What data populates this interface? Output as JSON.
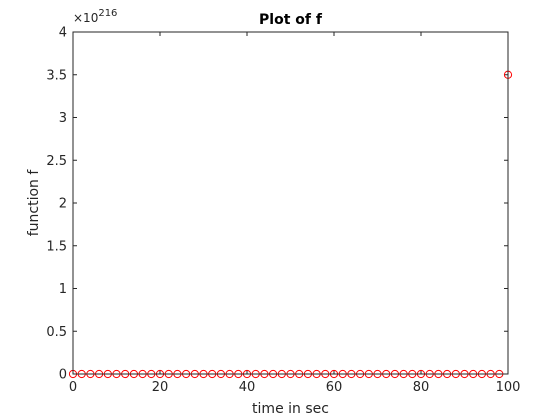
{
  "chart_data": {
    "type": "scatter",
    "title": "Plot of f",
    "xlabel": "time in sec",
    "ylabel": "function f",
    "xlim": [
      0,
      100
    ],
    "ylim": [
      0,
      4
    ],
    "xticks": [
      "0",
      "20",
      "40",
      "60",
      "80",
      "100"
    ],
    "yticks": [
      "0",
      "0.5",
      "1",
      "1.5",
      "2",
      "2.5",
      "3",
      "3.5",
      "4"
    ],
    "y_multiplier_base": "×10",
    "y_multiplier_exponent": "216",
    "marker": "circle",
    "marker_color": "#ff0000",
    "axis_color": "#262626",
    "grid": false,
    "x": [
      0,
      2,
      4,
      6,
      8,
      10,
      12,
      14,
      16,
      18,
      20,
      22,
      24,
      26,
      28,
      30,
      32,
      34,
      36,
      38,
      40,
      42,
      44,
      46,
      48,
      50,
      52,
      54,
      56,
      58,
      60,
      62,
      64,
      66,
      68,
      70,
      72,
      74,
      76,
      78,
      80,
      82,
      84,
      86,
      88,
      90,
      92,
      94,
      96,
      98,
      100
    ],
    "y": [
      0,
      0,
      0,
      0,
      0,
      0,
      0,
      0,
      0,
      0,
      0,
      0,
      0,
      0,
      0,
      0,
      0,
      0,
      0,
      0,
      0,
      0,
      0,
      0,
      0,
      0,
      0,
      0,
      0,
      0,
      0,
      0,
      0,
      0,
      0,
      0,
      0,
      0,
      0,
      0,
      0,
      0,
      0,
      0,
      0,
      0,
      0,
      0,
      0,
      0,
      3.5
    ]
  }
}
